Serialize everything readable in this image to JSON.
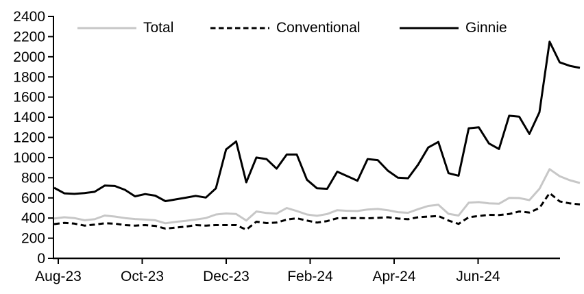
{
  "chart_data": {
    "type": "line",
    "title": "",
    "xlabel": "",
    "ylabel": "",
    "x_tick_labels": [
      "Aug-23",
      "Oct-23",
      "Dec-23",
      "Feb-24",
      "Apr-24",
      "Jun-24"
    ],
    "y_tick_labels": [
      "0",
      "200",
      "400",
      "600",
      "800",
      "1000",
      "1200",
      "1400",
      "1600",
      "1800",
      "2000",
      "2200",
      "2400"
    ],
    "y_axis": {
      "min": 0,
      "max": 2400,
      "step": 200
    },
    "grid": "off",
    "legend_position": "top-inside",
    "frequency": "weekly",
    "axis_color": "#000000",
    "series": [
      {
        "name": "Total",
        "style": "solid",
        "color": "#c7c7c7",
        "values": [
          395,
          408,
          400,
          378,
          388,
          425,
          415,
          400,
          390,
          385,
          378,
          348,
          362,
          372,
          385,
          400,
          435,
          445,
          440,
          375,
          465,
          450,
          444,
          500,
          470,
          435,
          422,
          440,
          478,
          472,
          470,
          485,
          490,
          478,
          458,
          452,
          488,
          520,
          532,
          442,
          425,
          552,
          558,
          545,
          542,
          600,
          598,
          578,
          690,
          885,
          815,
          775,
          748
        ]
      },
      {
        "name": "Conventional",
        "style": "dashed",
        "color": "#000000",
        "values": [
          340,
          352,
          345,
          325,
          335,
          348,
          345,
          330,
          325,
          330,
          322,
          295,
          305,
          315,
          330,
          325,
          330,
          330,
          330,
          285,
          364,
          350,
          355,
          385,
          398,
          375,
          355,
          370,
          398,
          400,
          400,
          398,
          402,
          408,
          395,
          388,
          408,
          415,
          420,
          375,
          342,
          408,
          420,
          432,
          430,
          440,
          465,
          455,
          500,
          648,
          565,
          545,
          535
        ]
      },
      {
        "name": "Ginnie",
        "style": "solid",
        "color": "#000000",
        "values": [
          700,
          645,
          640,
          648,
          660,
          722,
          718,
          680,
          615,
          638,
          622,
          568,
          585,
          602,
          620,
          603,
          695,
          1080,
          1160,
          755,
          1000,
          985,
          890,
          1030,
          1030,
          780,
          695,
          690,
          860,
          815,
          770,
          985,
          975,
          870,
          800,
          795,
          930,
          1100,
          1155,
          845,
          820,
          1290,
          1300,
          1140,
          1085,
          1415,
          1405,
          1235,
          1450,
          2150,
          1945,
          1910,
          1890
        ]
      }
    ]
  }
}
